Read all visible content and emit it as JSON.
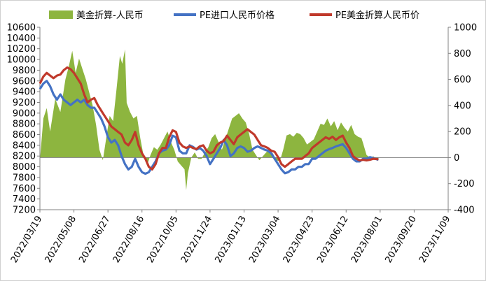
{
  "chart_data": {
    "type": "line",
    "legend_position": "top",
    "grid": false,
    "categories": [
      "2022/03/19",
      "2022/05/08",
      "2022/06/27",
      "2022/08/16",
      "2022/10/05",
      "2022/11/24",
      "2023/01/13",
      "2023/03/04",
      "2023/04/23",
      "2023/06/12",
      "2023/08/01",
      "2023/09/20",
      "2023/11/09"
    ],
    "y_left": {
      "min": 7200,
      "max": 10600,
      "step": 200
    },
    "y_right": {
      "min": -400,
      "max": 1000,
      "step": 200
    },
    "colors": {
      "area": "#8db53f",
      "pe_import": "#4472c4",
      "pe_usd": "#c0392b"
    },
    "series": [
      {
        "name": "美金折算-人民币",
        "kind": "area",
        "axis": "right",
        "points": [
          [
            0,
            -20
          ],
          [
            0.1,
            300
          ],
          [
            0.2,
            380
          ],
          [
            0.3,
            200
          ],
          [
            0.45,
            450
          ],
          [
            0.6,
            350
          ],
          [
            0.75,
            600
          ],
          [
            0.85,
            700
          ],
          [
            0.95,
            820
          ],
          [
            1.05,
            650
          ],
          [
            1.15,
            760
          ],
          [
            1.25,
            680
          ],
          [
            1.35,
            600
          ],
          [
            1.45,
            500
          ],
          [
            1.55,
            400
          ],
          [
            1.65,
            250
          ],
          [
            1.75,
            60
          ],
          [
            1.85,
            -20
          ],
          [
            1.95,
            150
          ],
          [
            2.05,
            320
          ],
          [
            2.15,
            280
          ],
          [
            2.25,
            520
          ],
          [
            2.35,
            780
          ],
          [
            2.42,
            720
          ],
          [
            2.5,
            830
          ],
          [
            2.55,
            420
          ],
          [
            2.65,
            350
          ],
          [
            2.75,
            300
          ],
          [
            2.85,
            320
          ],
          [
            2.95,
            150
          ],
          [
            3.05,
            10
          ],
          [
            3.15,
            -60
          ],
          [
            3.25,
            20
          ],
          [
            3.35,
            80
          ],
          [
            3.45,
            60
          ],
          [
            3.55,
            100
          ],
          [
            3.65,
            150
          ],
          [
            3.75,
            200
          ],
          [
            3.85,
            120
          ],
          [
            3.95,
            60
          ],
          [
            4.05,
            -30
          ],
          [
            4.15,
            -60
          ],
          [
            4.25,
            -90
          ],
          [
            4.3,
            -250
          ],
          [
            4.35,
            -120
          ],
          [
            4.45,
            0
          ],
          [
            4.55,
            40
          ],
          [
            4.65,
            -10
          ],
          [
            4.75,
            -10
          ],
          [
            4.85,
            40
          ],
          [
            4.95,
            80
          ],
          [
            5.05,
            150
          ],
          [
            5.15,
            180
          ],
          [
            5.25,
            120
          ],
          [
            5.35,
            60
          ],
          [
            5.45,
            140
          ],
          [
            5.55,
            220
          ],
          [
            5.65,
            300
          ],
          [
            5.75,
            320
          ],
          [
            5.85,
            340
          ],
          [
            5.95,
            300
          ],
          [
            6.05,
            270
          ],
          [
            6.15,
            180
          ],
          [
            6.25,
            60
          ],
          [
            6.35,
            20
          ],
          [
            6.45,
            -20
          ],
          [
            6.55,
            10
          ],
          [
            6.65,
            40
          ],
          [
            6.75,
            60
          ],
          [
            6.85,
            30
          ],
          [
            6.95,
            -20
          ],
          [
            7.05,
            -30
          ],
          [
            7.15,
            60
          ],
          [
            7.25,
            170
          ],
          [
            7.35,
            180
          ],
          [
            7.45,
            160
          ],
          [
            7.55,
            190
          ],
          [
            7.65,
            180
          ],
          [
            7.75,
            150
          ],
          [
            7.85,
            100
          ],
          [
            7.95,
            120
          ],
          [
            8.05,
            140
          ],
          [
            8.15,
            200
          ],
          [
            8.25,
            260
          ],
          [
            8.35,
            250
          ],
          [
            8.45,
            300
          ],
          [
            8.55,
            240
          ],
          [
            8.65,
            280
          ],
          [
            8.75,
            210
          ],
          [
            8.85,
            270
          ],
          [
            8.95,
            230
          ],
          [
            9.05,
            200
          ],
          [
            9.15,
            250
          ],
          [
            9.25,
            180
          ],
          [
            9.35,
            160
          ],
          [
            9.45,
            150
          ],
          [
            9.5,
            110
          ],
          [
            9.6,
            20
          ],
          [
            9.7,
            0
          ],
          [
            9.8,
            10
          ],
          [
            9.95,
            -20
          ]
        ]
      },
      {
        "name": "PE进口人民币价格",
        "kind": "line",
        "axis": "left",
        "points": [
          [
            0,
            9450
          ],
          [
            0.1,
            9550
          ],
          [
            0.2,
            9600
          ],
          [
            0.3,
            9500
          ],
          [
            0.4,
            9350
          ],
          [
            0.5,
            9250
          ],
          [
            0.6,
            9350
          ],
          [
            0.7,
            9250
          ],
          [
            0.8,
            9200
          ],
          [
            0.9,
            9150
          ],
          [
            1,
            9200
          ],
          [
            1.1,
            9250
          ],
          [
            1.2,
            9200
          ],
          [
            1.3,
            9250
          ],
          [
            1.4,
            9150
          ],
          [
            1.5,
            9100
          ],
          [
            1.6,
            9100
          ],
          [
            1.7,
            9000
          ],
          [
            1.8,
            8900
          ],
          [
            1.9,
            8750
          ],
          [
            2,
            8550
          ],
          [
            2.1,
            8450
          ],
          [
            2.2,
            8500
          ],
          [
            2.3,
            8400
          ],
          [
            2.4,
            8200
          ],
          [
            2.5,
            8050
          ],
          [
            2.6,
            7950
          ],
          [
            2.7,
            8000
          ],
          [
            2.8,
            8150
          ],
          [
            2.9,
            8000
          ],
          [
            3,
            7900
          ],
          [
            3.1,
            7870
          ],
          [
            3.2,
            7900
          ],
          [
            3.3,
            8000
          ],
          [
            3.4,
            8100
          ],
          [
            3.5,
            8250
          ],
          [
            3.6,
            8300
          ],
          [
            3.7,
            8320
          ],
          [
            3.8,
            8400
          ],
          [
            3.9,
            8580
          ],
          [
            4,
            8550
          ],
          [
            4.1,
            8300
          ],
          [
            4.2,
            8250
          ],
          [
            4.3,
            8250
          ],
          [
            4.4,
            8400
          ],
          [
            4.5,
            8370
          ],
          [
            4.6,
            8320
          ],
          [
            4.7,
            8350
          ],
          [
            4.8,
            8300
          ],
          [
            4.9,
            8200
          ],
          [
            5,
            8050
          ],
          [
            5.1,
            8150
          ],
          [
            5.2,
            8250
          ],
          [
            5.3,
            8350
          ],
          [
            5.4,
            8500
          ],
          [
            5.5,
            8400
          ],
          [
            5.6,
            8200
          ],
          [
            5.7,
            8250
          ],
          [
            5.8,
            8350
          ],
          [
            5.9,
            8380
          ],
          [
            6,
            8350
          ],
          [
            6.1,
            8280
          ],
          [
            6.2,
            8300
          ],
          [
            6.3,
            8350
          ],
          [
            6.4,
            8380
          ],
          [
            6.5,
            8350
          ],
          [
            6.6,
            8320
          ],
          [
            6.7,
            8300
          ],
          [
            6.8,
            8250
          ],
          [
            6.9,
            8150
          ],
          [
            7,
            8050
          ],
          [
            7.1,
            7950
          ],
          [
            7.2,
            7880
          ],
          [
            7.3,
            7900
          ],
          [
            7.4,
            7950
          ],
          [
            7.5,
            7950
          ],
          [
            7.6,
            8000
          ],
          [
            7.7,
            8000
          ],
          [
            7.8,
            8050
          ],
          [
            7.9,
            8050
          ],
          [
            8,
            8150
          ],
          [
            8.1,
            8150
          ],
          [
            8.2,
            8200
          ],
          [
            8.3,
            8250
          ],
          [
            8.4,
            8300
          ],
          [
            8.5,
            8330
          ],
          [
            8.6,
            8350
          ],
          [
            8.7,
            8380
          ],
          [
            8.8,
            8400
          ],
          [
            8.9,
            8420
          ],
          [
            9,
            8350
          ],
          [
            9.1,
            8250
          ],
          [
            9.2,
            8150
          ],
          [
            9.3,
            8100
          ],
          [
            9.4,
            8100
          ],
          [
            9.5,
            8150
          ],
          [
            9.6,
            8150
          ],
          [
            9.7,
            8180
          ],
          [
            9.8,
            8160
          ],
          [
            9.95,
            8130
          ]
        ]
      },
      {
        "name": "PE美金折算人民币价",
        "kind": "line",
        "axis": "left",
        "points": [
          [
            0,
            9550
          ],
          [
            0.1,
            9680
          ],
          [
            0.2,
            9750
          ],
          [
            0.3,
            9700
          ],
          [
            0.4,
            9650
          ],
          [
            0.5,
            9700
          ],
          [
            0.6,
            9720
          ],
          [
            0.7,
            9800
          ],
          [
            0.8,
            9850
          ],
          [
            0.9,
            9820
          ],
          [
            1,
            9750
          ],
          [
            1.1,
            9650
          ],
          [
            1.2,
            9550
          ],
          [
            1.3,
            9350
          ],
          [
            1.4,
            9200
          ],
          [
            1.5,
            9250
          ],
          [
            1.6,
            9280
          ],
          [
            1.7,
            9150
          ],
          [
            1.8,
            9050
          ],
          [
            1.9,
            8950
          ],
          [
            2,
            8850
          ],
          [
            2.1,
            8750
          ],
          [
            2.2,
            8700
          ],
          [
            2.3,
            8650
          ],
          [
            2.4,
            8600
          ],
          [
            2.5,
            8450
          ],
          [
            2.6,
            8400
          ],
          [
            2.7,
            8500
          ],
          [
            2.8,
            8650
          ],
          [
            2.9,
            8400
          ],
          [
            3,
            8250
          ],
          [
            3.1,
            8150
          ],
          [
            3.2,
            8000
          ],
          [
            3.3,
            7950
          ],
          [
            3.4,
            8050
          ],
          [
            3.5,
            8250
          ],
          [
            3.6,
            8350
          ],
          [
            3.7,
            8350
          ],
          [
            3.8,
            8550
          ],
          [
            3.9,
            8680
          ],
          [
            4,
            8650
          ],
          [
            4.1,
            8450
          ],
          [
            4.2,
            8380
          ],
          [
            4.3,
            8350
          ],
          [
            4.4,
            8380
          ],
          [
            4.5,
            8350
          ],
          [
            4.6,
            8330
          ],
          [
            4.7,
            8380
          ],
          [
            4.8,
            8400
          ],
          [
            4.9,
            8300
          ],
          [
            5,
            8250
          ],
          [
            5.1,
            8280
          ],
          [
            5.2,
            8400
          ],
          [
            5.3,
            8450
          ],
          [
            5.4,
            8480
          ],
          [
            5.5,
            8580
          ],
          [
            5.6,
            8500
          ],
          [
            5.7,
            8420
          ],
          [
            5.8,
            8550
          ],
          [
            5.9,
            8600
          ],
          [
            6,
            8650
          ],
          [
            6.1,
            8700
          ],
          [
            6.2,
            8650
          ],
          [
            6.3,
            8600
          ],
          [
            6.4,
            8500
          ],
          [
            6.5,
            8400
          ],
          [
            6.6,
            8380
          ],
          [
            6.7,
            8350
          ],
          [
            6.8,
            8300
          ],
          [
            6.9,
            8280
          ],
          [
            7,
            8180
          ],
          [
            7.1,
            8050
          ],
          [
            7.2,
            8000
          ],
          [
            7.3,
            8050
          ],
          [
            7.4,
            8100
          ],
          [
            7.5,
            8150
          ],
          [
            7.6,
            8150
          ],
          [
            7.7,
            8150
          ],
          [
            7.8,
            8200
          ],
          [
            7.9,
            8250
          ],
          [
            8,
            8350
          ],
          [
            8.1,
            8400
          ],
          [
            8.2,
            8450
          ],
          [
            8.3,
            8500
          ],
          [
            8.4,
            8550
          ],
          [
            8.5,
            8520
          ],
          [
            8.6,
            8560
          ],
          [
            8.7,
            8500
          ],
          [
            8.8,
            8550
          ],
          [
            8.9,
            8580
          ],
          [
            9,
            8450
          ],
          [
            9.1,
            8350
          ],
          [
            9.2,
            8200
          ],
          [
            9.3,
            8150
          ],
          [
            9.4,
            8120
          ],
          [
            9.5,
            8130
          ],
          [
            9.6,
            8120
          ],
          [
            9.7,
            8130
          ],
          [
            9.8,
            8150
          ],
          [
            9.95,
            8140
          ]
        ]
      }
    ]
  }
}
